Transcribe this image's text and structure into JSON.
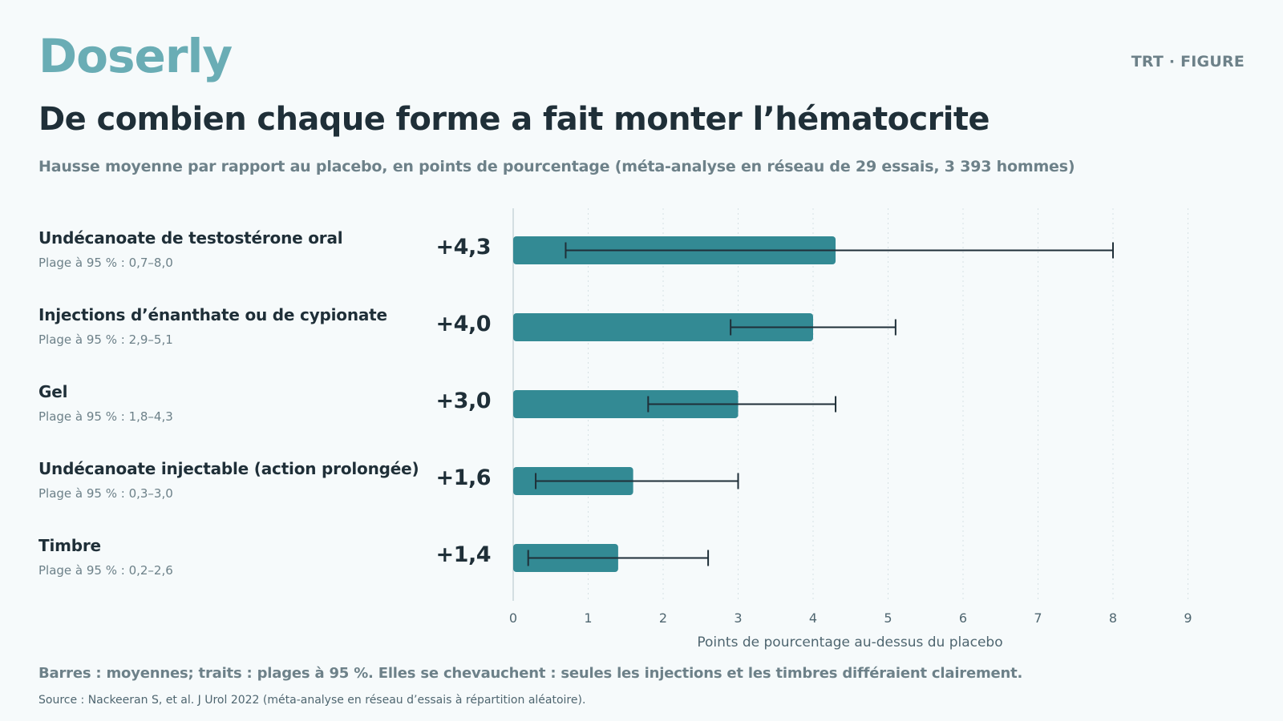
{
  "header": {
    "brand": "Doserly",
    "tag": "TRT · FIGURE",
    "title": "De combien chaque forme a fait monter l’hématocrite",
    "subtitle": "Hausse moyenne par rapport au placebo, en points de pourcentage (méta-analyse en réseau de 29 essais, 3 393 hommes)"
  },
  "colors": {
    "bar": "#338a94",
    "brand": "#6aadb5",
    "whisker": "#1f2f38"
  },
  "chart_data": {
    "type": "bar",
    "orientation": "horizontal",
    "title": "De combien chaque forme a fait monter l’hématocrite",
    "subtitle": "Hausse moyenne par rapport au placebo, en points de pourcentage (méta-analyse en réseau de 29 essais, 3 393 hommes)",
    "xlabel": "Points de pourcentage au-dessus du placebo",
    "xlim": [
      0,
      9
    ],
    "xticks": [
      "0",
      "1",
      "2",
      "3",
      "4",
      "5",
      "6",
      "7",
      "8",
      "9"
    ],
    "grid": "vertical dotted",
    "categories": [
      "Undécanoate de testostérone oral",
      "Injections d’énanthate ou de cypionate",
      "Gel",
      "Undécanoate injectable (action prolongée)",
      "Timbre"
    ],
    "values": [
      4.3,
      4.0,
      3.0,
      1.6,
      1.4
    ],
    "ci_low": [
      0.7,
      2.9,
      1.8,
      0.3,
      0.2
    ],
    "ci_high": [
      8.0,
      5.1,
      4.3,
      3.0,
      2.6
    ],
    "value_labels": [
      "+4,3",
      "+4,0",
      "+3,0",
      "+1,6",
      "+1,4"
    ],
    "ci_labels": [
      "Plage à 95 % : 0,7–8,0",
      "Plage à 95 % : 2,9–5,1",
      "Plage à 95 % : 1,8–4,3",
      "Plage à 95 % : 0,3–3,0",
      "Plage à 95 % : 0,2–2,6"
    ]
  },
  "footer": {
    "note": "Barres : moyennes; traits : plages à 95 %. Elles se chevauchent : seules les injections et les timbres différaient clairement.",
    "source": "Source : Nackeeran S, et al. J Urol 2022 (méta-analyse en réseau d’essais à répartition aléatoire)."
  }
}
